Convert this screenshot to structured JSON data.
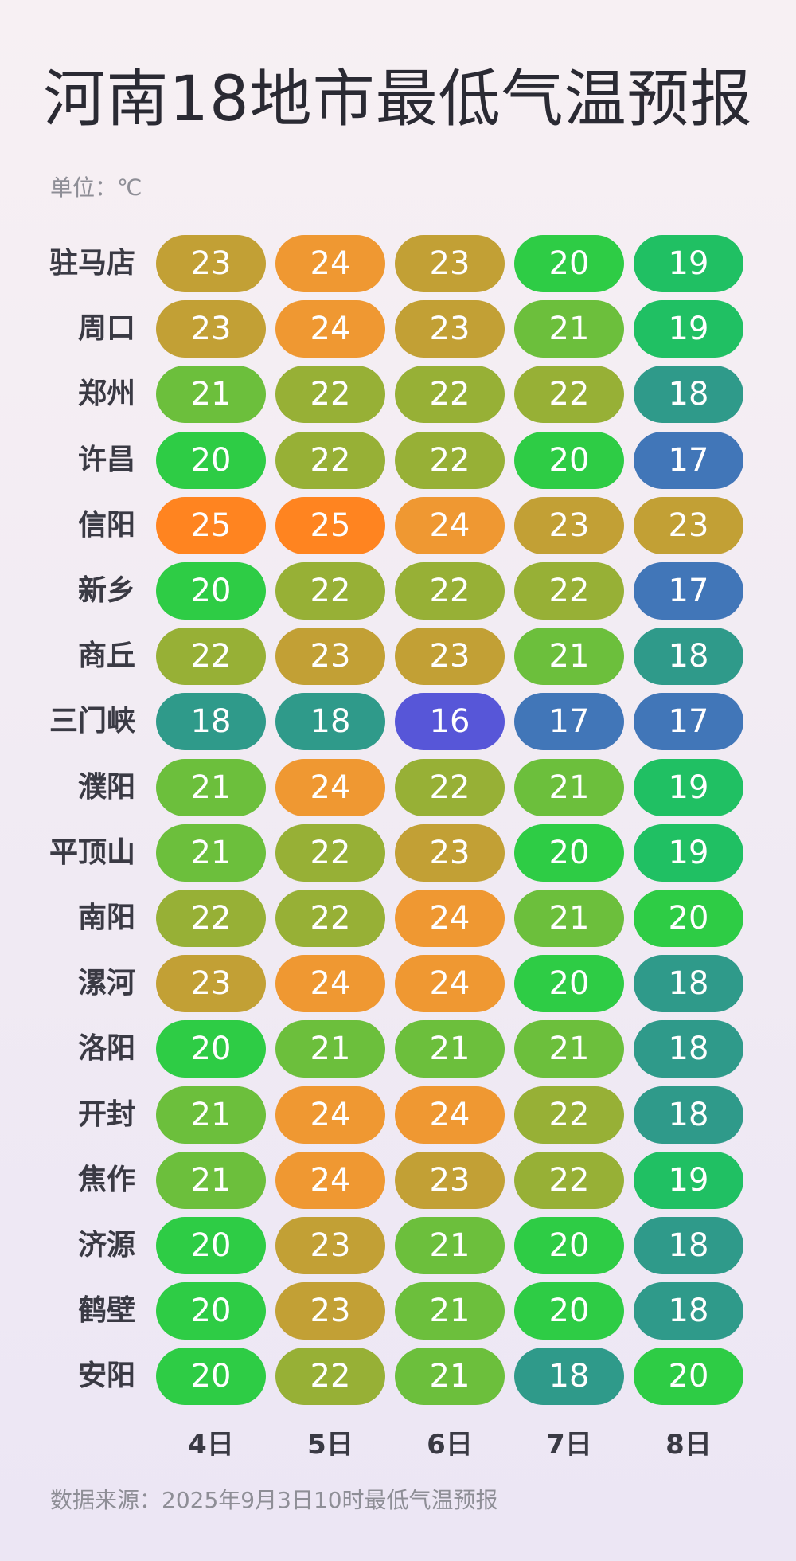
{
  "title": "河南18地市最低气温预报",
  "unit_label": "单位：℃",
  "source": "数据来源：2025年9月3日10时最低气温预报",
  "chart_data": {
    "type": "table",
    "title": "河南18地市最低气温预报",
    "unit": "℃",
    "columns": [
      "4日",
      "5日",
      "6日",
      "7日",
      "8日"
    ],
    "rows": [
      {
        "city": "驻马店",
        "values": [
          23,
          24,
          23,
          20,
          19
        ]
      },
      {
        "city": "周口",
        "values": [
          23,
          24,
          23,
          21,
          19
        ]
      },
      {
        "city": "郑州",
        "values": [
          21,
          22,
          22,
          22,
          18
        ]
      },
      {
        "city": "许昌",
        "values": [
          20,
          22,
          22,
          20,
          17
        ]
      },
      {
        "city": "信阳",
        "values": [
          25,
          25,
          24,
          23,
          23
        ]
      },
      {
        "city": "新乡",
        "values": [
          20,
          22,
          22,
          22,
          17
        ]
      },
      {
        "city": "商丘",
        "values": [
          22,
          23,
          23,
          21,
          18
        ]
      },
      {
        "city": "三门峡",
        "values": [
          18,
          18,
          16,
          17,
          17
        ]
      },
      {
        "city": "濮阳",
        "values": [
          21,
          24,
          22,
          21,
          19
        ]
      },
      {
        "city": "平顶山",
        "values": [
          21,
          22,
          23,
          20,
          19
        ]
      },
      {
        "city": "南阳",
        "values": [
          22,
          22,
          24,
          21,
          20
        ]
      },
      {
        "city": "漯河",
        "values": [
          23,
          24,
          24,
          20,
          18
        ]
      },
      {
        "city": "洛阳",
        "values": [
          20,
          21,
          21,
          21,
          18
        ]
      },
      {
        "city": "开封",
        "values": [
          21,
          24,
          24,
          22,
          18
        ]
      },
      {
        "city": "焦作",
        "values": [
          21,
          24,
          23,
          22,
          19
        ]
      },
      {
        "city": "济源",
        "values": [
          20,
          23,
          21,
          20,
          18
        ]
      },
      {
        "city": "鹤壁",
        "values": [
          20,
          23,
          21,
          20,
          18
        ]
      },
      {
        "city": "安阳",
        "values": [
          20,
          22,
          21,
          18,
          20
        ]
      }
    ],
    "color_scale": {
      "16": "#5756d8",
      "17": "#4176b8",
      "18": "#2f9a8a",
      "19": "#20c063",
      "20": "#2ecc45",
      "21": "#6cbf3c",
      "22": "#97b036",
      "23": "#c2a035",
      "24": "#ef9832",
      "25": "#ff8420"
    }
  }
}
